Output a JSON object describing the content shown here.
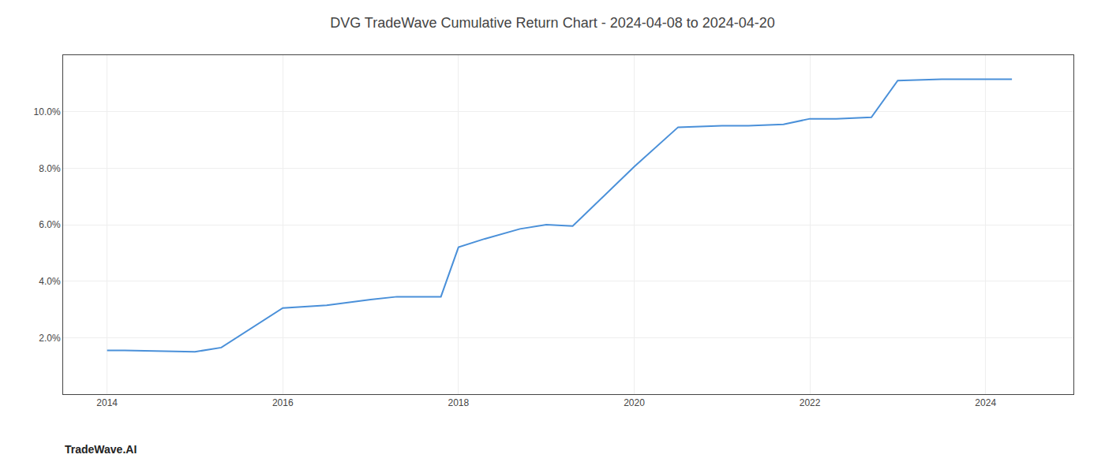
{
  "chart_data": {
    "type": "line",
    "title": "DVG TradeWave Cumulative Return Chart - 2024-04-08 to 2024-04-20",
    "annotations": [
      "TradeWave.AI"
    ],
    "x": [
      2014.0,
      2014.2,
      2015.0,
      2015.3,
      2016.0,
      2016.5,
      2017.0,
      2017.3,
      2017.8,
      2018.0,
      2018.3,
      2018.7,
      2019.0,
      2019.3,
      2020.0,
      2020.5,
      2021.0,
      2021.3,
      2021.7,
      2022.0,
      2022.3,
      2022.7,
      2023.0,
      2023.5,
      2024.0,
      2024.3
    ],
    "values": [
      1.55,
      1.55,
      1.5,
      1.65,
      3.05,
      3.15,
      3.35,
      3.45,
      3.45,
      5.2,
      5.5,
      5.85,
      6.0,
      5.95,
      8.05,
      9.45,
      9.5,
      9.5,
      9.55,
      9.75,
      9.75,
      9.8,
      11.1,
      11.15,
      11.15,
      11.15
    ],
    "color": "#4a90d9",
    "xlim": [
      2013.5,
      2025.0
    ],
    "ylim": [
      0.0,
      12.0
    ],
    "xticks": [
      2014,
      2016,
      2018,
      2020,
      2022,
      2024
    ],
    "yticks": [
      {
        "value": 2.0,
        "label": "2.0%"
      },
      {
        "value": 4.0,
        "label": "4.0%"
      },
      {
        "value": 6.0,
        "label": "6.0%"
      },
      {
        "value": 8.0,
        "label": "8.0%"
      },
      {
        "value": 10.0,
        "label": "10.0%"
      }
    ],
    "grid": true
  }
}
